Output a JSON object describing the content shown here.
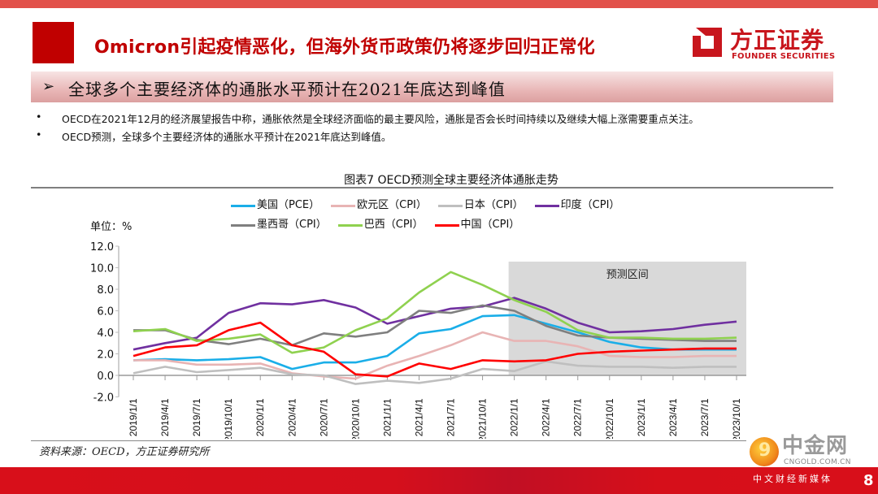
{
  "header": {
    "main_title": "Omicron引起疫情恶化，但海外货币政策仍将逐步回归正常化",
    "logo_cn": "方正证券",
    "logo_en": "FOUNDER SECURITIES",
    "subtitle_arrow": "➢",
    "subtitle": "全球多个主要经济体的通胀水平预计在2021年底达到峰值"
  },
  "bullets": [
    {
      "dot": "•",
      "text": "OECD在2021年12月的经济展望报告中称，通胀依然是全球经济面临的最主要风险，通胀是否会长时间持续以及继续大幅上涨需要重点关注。"
    },
    {
      "dot": "•",
      "text": "OECD预测，全球多个主要经济体的通胀水平预计在2021年底达到峰值。"
    }
  ],
  "figure": {
    "title": "图表7 OECD预测全球主要经济体通胀走势",
    "unit": "单位：%",
    "source": "资料来源：OECD，方正证券研究所"
  },
  "chart_data": {
    "type": "line",
    "title": "图表7 OECD预测全球主要经济体通胀走势",
    "xlabel": "",
    "ylabel": "单位：%",
    "ylim": [
      -2.0,
      12.0
    ],
    "yticks": [
      "12.0",
      "10.0",
      "8.0",
      "6.0",
      "4.0",
      "2.0",
      "0.0",
      "-2.0"
    ],
    "ytick_values": [
      12,
      10,
      8,
      6,
      4,
      2,
      0,
      -2
    ],
    "grid": false,
    "legend_position": "top",
    "x": [
      "2019/1/1",
      "2019/4/1",
      "2019/7/1",
      "2019/10/1",
      "2020/1/1",
      "2020/4/1",
      "2020/7/1",
      "2020/10/1",
      "2021/1/1",
      "2021/4/1",
      "2021/7/1",
      "2021/10/1",
      "2022/1/1",
      "2022/4/1",
      "2022/7/1",
      "2022/10/1",
      "2023/1/1",
      "2023/4/1",
      "2023/7/1",
      "2023/10/1"
    ],
    "forecast_region": {
      "label": "预测区间",
      "start": "2022/1/1",
      "end": "2023/10/1",
      "color": "#d9d9d9"
    },
    "series": [
      {
        "name": "美国（PCE）",
        "color": "#1aaee8",
        "values": [
          1.4,
          1.5,
          1.4,
          1.5,
          1.7,
          0.6,
          1.2,
          1.2,
          1.8,
          3.9,
          4.3,
          5.5,
          5.6,
          4.8,
          4.0,
          3.1,
          2.6,
          2.4,
          2.4,
          2.4
        ]
      },
      {
        "name": "欧元区（CPI）",
        "color": "#e8b4b4",
        "values": [
          1.4,
          1.4,
          1.0,
          1.0,
          1.1,
          0.2,
          -0.1,
          -0.3,
          0.9,
          1.8,
          2.8,
          4.0,
          3.2,
          3.2,
          2.7,
          1.8,
          1.7,
          1.7,
          1.8,
          1.8
        ]
      },
      {
        "name": "日本（CPI）",
        "color": "#bfbfbf",
        "values": [
          0.2,
          0.8,
          0.3,
          0.5,
          0.7,
          0.1,
          0.0,
          -0.8,
          -0.5,
          -0.7,
          -0.3,
          0.6,
          0.4,
          1.3,
          0.9,
          0.8,
          0.8,
          0.7,
          0.8,
          0.8
        ]
      },
      {
        "name": "印度（CPI）",
        "color": "#7030a0",
        "values": [
          2.4,
          3.0,
          3.5,
          5.8,
          6.7,
          6.6,
          7.0,
          6.3,
          4.8,
          5.5,
          6.2,
          6.4,
          7.2,
          6.2,
          4.9,
          4.0,
          4.1,
          4.3,
          4.7,
          5.0
        ]
      },
      {
        "name": "墨西哥（CPI）",
        "color": "#7f7f7f",
        "values": [
          4.2,
          4.2,
          3.3,
          2.9,
          3.4,
          2.8,
          3.9,
          3.6,
          4.0,
          6.0,
          5.8,
          6.5,
          6.0,
          4.6,
          3.7,
          3.5,
          3.4,
          3.3,
          3.2,
          3.2
        ]
      },
      {
        "name": "巴西（CPI）",
        "color": "#8fd14f",
        "values": [
          4.1,
          4.3,
          3.2,
          3.4,
          3.8,
          2.1,
          2.6,
          4.2,
          5.3,
          7.7,
          9.6,
          8.4,
          7.0,
          5.9,
          4.2,
          3.5,
          3.5,
          3.4,
          3.4,
          3.5
        ]
      },
      {
        "name": "中国（CPI）",
        "color": "#ff0000",
        "values": [
          1.8,
          2.6,
          2.8,
          4.2,
          4.9,
          2.8,
          2.2,
          0.1,
          -0.1,
          1.1,
          0.6,
          1.4,
          1.3,
          1.4,
          2.0,
          2.2,
          2.3,
          2.4,
          2.5,
          2.5
        ]
      }
    ]
  },
  "watermark": {
    "cn": "中金网",
    "en": "CNGOLD.COM.CN",
    "sub": "中文财经新媒体"
  },
  "footer": {
    "page_number": "8"
  },
  "colors": {
    "brand_red": "#c00000",
    "top_bar": "#e2514a",
    "footer_red": "#d80f1a"
  }
}
